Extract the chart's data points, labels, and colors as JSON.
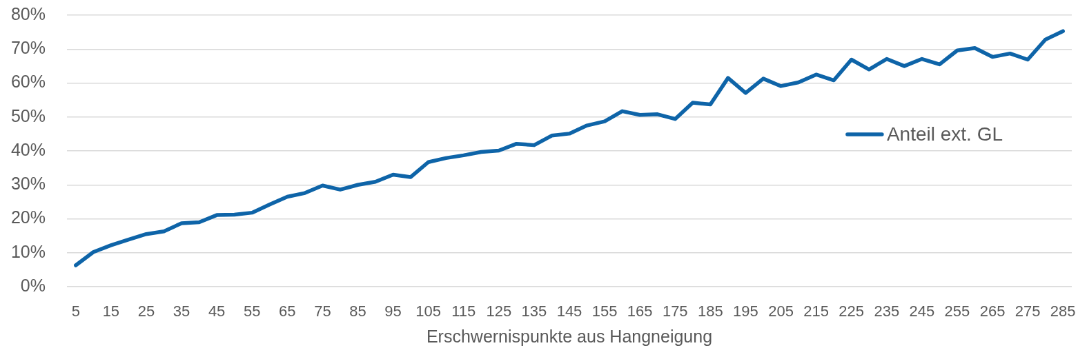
{
  "chart_data": {
    "type": "line",
    "xlabel": "Erschwernispunkte aus Hangneigung",
    "categories": [
      "5",
      null,
      "15",
      null,
      "25",
      null,
      "35",
      null,
      "45",
      null,
      "55",
      null,
      "65",
      null,
      "75",
      null,
      "85",
      null,
      "95",
      null,
      "105",
      null,
      "115",
      null,
      "125",
      null,
      "135",
      null,
      "145",
      null,
      "155",
      null,
      "165",
      null,
      "175",
      null,
      "185",
      null,
      "195",
      null,
      "205",
      null,
      "215",
      null,
      "225",
      null,
      "235",
      null,
      "245",
      null,
      "255",
      null,
      "265",
      null,
      "275",
      null,
      "285"
    ],
    "series": [
      {
        "name": "Anteil ext. GL",
        "color": "#0e64a8",
        "values": [
          6.3,
          10.2,
          12.2,
          13.9,
          15.5,
          16.3,
          18.7,
          19.0,
          21.1,
          21.2,
          21.8,
          24.2,
          26.5,
          27.6,
          29.8,
          28.6,
          30.0,
          30.9,
          33.0,
          32.3,
          36.7,
          37.9,
          38.7,
          39.7,
          40.1,
          42.1,
          41.7,
          44.5,
          45.1,
          47.5,
          48.7,
          51.7,
          50.6,
          50.8,
          49.4,
          54.2,
          53.7,
          61.5,
          57.1,
          61.3,
          59.1,
          60.2,
          62.5,
          60.8,
          66.9,
          64.0,
          67.1,
          65.0,
          67.1,
          65.5,
          69.6,
          70.3,
          67.7,
          68.7,
          66.9,
          72.8,
          75.3
        ]
      }
    ],
    "ylim": [
      0,
      80
    ],
    "yticks": [
      {
        "value": 0,
        "label": "0%"
      },
      {
        "value": 10,
        "label": "10%"
      },
      {
        "value": 20,
        "label": "20%"
      },
      {
        "value": 30,
        "label": "30%"
      },
      {
        "value": 40,
        "label": "40%"
      },
      {
        "value": 50,
        "label": "50%"
      },
      {
        "value": 60,
        "label": "60%"
      },
      {
        "value": 70,
        "label": "70%"
      },
      {
        "value": 80,
        "label": "80%"
      }
    ],
    "grid": "y",
    "legend": "right",
    "marker": "none",
    "line_style": "solid"
  }
}
